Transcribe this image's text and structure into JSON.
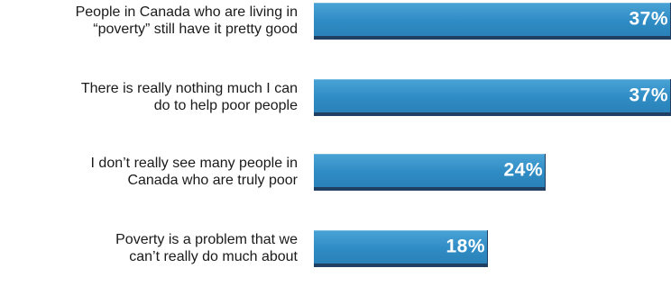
{
  "chart_data": {
    "type": "bar",
    "orientation": "horizontal",
    "title": "",
    "xlabel": "",
    "ylabel": "",
    "categories": [
      [
        "People in Canada who are living in",
        "“poverty” still have it pretty good"
      ],
      [
        "There is really nothing much I can",
        "do to help poor people"
      ],
      [
        "I don’t really see many people in",
        "Canada who are truly poor"
      ],
      [
        "Poverty is a problem that we",
        "can’t really do much about"
      ]
    ],
    "values": [
      37,
      37,
      24,
      18
    ],
    "value_labels": [
      "37%",
      "37%",
      "24%",
      "18%"
    ],
    "xlim": [
      0,
      37
    ],
    "grid": false,
    "bar_color": "#2f8cc4",
    "bar_edge_color": "#1f3f63",
    "label_color": "#1a1a1a",
    "value_label_color": "#ffffff"
  }
}
